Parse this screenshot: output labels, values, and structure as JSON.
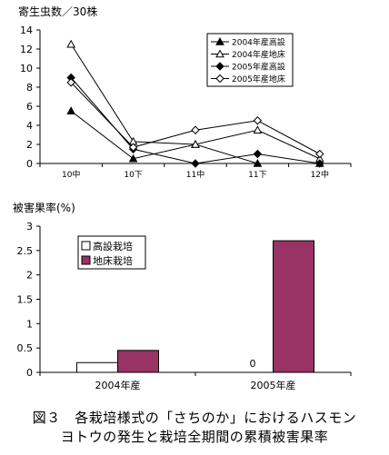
{
  "chart_data": [
    {
      "type": "line",
      "ylabel": "寄生虫数／30株",
      "xlabel": "",
      "categories": [
        "10中",
        "10下",
        "11中",
        "11下",
        "12中"
      ],
      "ylim": [
        0,
        14
      ],
      "yticks": [
        0,
        2,
        4,
        6,
        8,
        10,
        12,
        14
      ],
      "legend_position": "top-right",
      "series": [
        {
          "name": "2004年産高設",
          "marker": "filled-triangle",
          "values": [
            5.5,
            0.5,
            2.0,
            0.0,
            0.0
          ]
        },
        {
          "name": "2004年産地床",
          "marker": "open-triangle",
          "values": [
            12.5,
            2.3,
            2.0,
            3.5,
            0.5
          ]
        },
        {
          "name": "2005年産高設",
          "marker": "filled-diamond",
          "values": [
            9.0,
            1.5,
            0.0,
            1.0,
            0.0
          ]
        },
        {
          "name": "2005年産地床",
          "marker": "open-diamond",
          "values": [
            8.5,
            1.7,
            3.5,
            4.5,
            1.0
          ]
        }
      ]
    },
    {
      "type": "bar",
      "ylabel": "被害果率(%)",
      "xlabel": "",
      "categories": [
        "2004年産",
        "2005年産"
      ],
      "ylim": [
        0,
        3
      ],
      "yticks": [
        "0",
        "0.5",
        "1",
        "1.5",
        "2",
        "2.5",
        "3"
      ],
      "legend_position": "top-left",
      "series": [
        {
          "name": "高設栽培",
          "color": "#ffffff",
          "values": [
            0.2,
            0
          ],
          "value_labels": [
            "",
            "0"
          ]
        },
        {
          "name": "地床栽培",
          "color": "#993366",
          "values": [
            0.45,
            2.7
          ],
          "value_labels": [
            "",
            ""
          ]
        }
      ]
    }
  ],
  "caption": {
    "line1": "図３　各栽培様式の「さちのか」におけるハスモン",
    "line2": "ヨトウの発生と栽培全期間の累積被害果率"
  }
}
